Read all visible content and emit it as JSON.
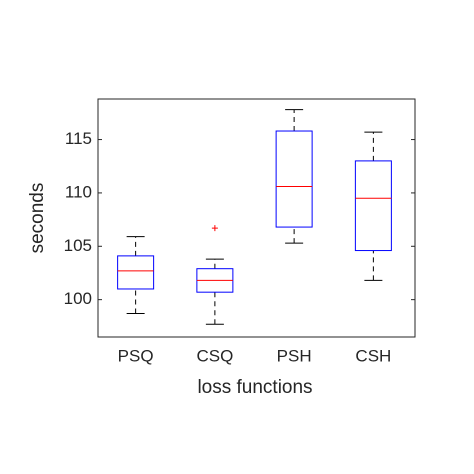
{
  "chart_data": {
    "type": "box",
    "xlabel": "loss functions",
    "ylabel": "seconds",
    "categories": [
      "PSQ",
      "CSQ",
      "PSH",
      "CSH"
    ],
    "boxes": [
      {
        "whislo": 98.7,
        "q1": 101.0,
        "med": 102.7,
        "q3": 104.1,
        "whishi": 105.9,
        "fliers": []
      },
      {
        "whislo": 97.7,
        "q1": 100.7,
        "med": 101.8,
        "q3": 102.9,
        "whishi": 103.8,
        "fliers": [
          106.7
        ]
      },
      {
        "whislo": 105.3,
        "q1": 106.8,
        "med": 110.6,
        "q3": 115.8,
        "whishi": 117.8,
        "fliers": []
      },
      {
        "whislo": 101.8,
        "q1": 104.6,
        "med": 109.5,
        "q3": 113.0,
        "whishi": 115.7,
        "fliers": []
      }
    ],
    "box_color": "#0000ff",
    "median_color": "#ff0000",
    "whisker_color": "#000000",
    "flier_color": "#ff0000",
    "ylim": [
      96.5,
      118.8
    ],
    "yticks": [
      100,
      105,
      110,
      115
    ]
  }
}
